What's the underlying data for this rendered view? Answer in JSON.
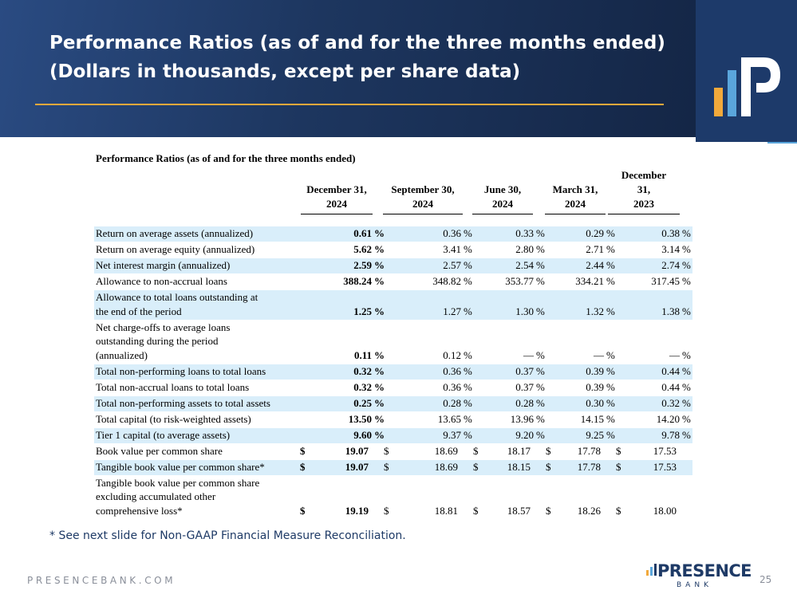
{
  "header": {
    "title_line1": "Performance Ratios (as of and for the three months ended)",
    "title_line2": "(Dollars in thousands, except per share data)"
  },
  "table": {
    "title": "Performance Ratios (as of and for the three months ended)",
    "columns": [
      {
        "line1": "December 31,",
        "line2": "2024"
      },
      {
        "line1": "September 30,",
        "line2": "2024"
      },
      {
        "line1": "June 30,",
        "line2": "2024"
      },
      {
        "line1": "March 31,",
        "line2": "2024"
      },
      {
        "line0": "December",
        "line1": "31,",
        "line2": "2023"
      }
    ],
    "rows": [
      {
        "label": "Return on average assets (annualized)",
        "values": [
          "0.61",
          "0.36",
          "0.33",
          "0.29",
          "0.38"
        ]
      },
      {
        "label": "Return on average equity (annualized)",
        "values": [
          "5.62",
          "3.41",
          "2.80",
          "2.71",
          "3.14"
        ]
      },
      {
        "label": "Net interest margin (annualized)",
        "values": [
          "2.59",
          "2.57",
          "2.54",
          "2.44",
          "2.74"
        ]
      },
      {
        "label": "Allowance to non-accrual loans",
        "values": [
          "388.24",
          "348.82",
          "353.77",
          "334.21",
          "317.45"
        ]
      },
      {
        "label_lines": [
          "Allowance to total loans outstanding at",
          "the end of the period"
        ],
        "values": [
          "1.25",
          "1.27",
          "1.30",
          "1.32",
          "1.38"
        ]
      },
      {
        "label_lines": [
          "Net charge-offs to average loans",
          "outstanding during the period",
          "(annualized)"
        ],
        "values": [
          "0.11",
          "0.12",
          "—",
          "—",
          "—"
        ]
      },
      {
        "label": "Total non-performing loans to total loans",
        "values": [
          "0.32",
          "0.36",
          "0.37",
          "0.39",
          "0.44"
        ]
      },
      {
        "label": "Total non-accrual loans to total loans",
        "values": [
          "0.32",
          "0.36",
          "0.37",
          "0.39",
          "0.44"
        ]
      },
      {
        "label": "Total non-performing assets to total assets",
        "values": [
          "0.25",
          "0.28",
          "0.28",
          "0.30",
          "0.32"
        ]
      },
      {
        "label": "Total capital (to risk-weighted assets)",
        "values": [
          "13.50",
          "13.65",
          "13.96",
          "14.15",
          "14.20"
        ]
      },
      {
        "label": "Tier 1 capital (to average assets)",
        "values": [
          "9.60",
          "9.37",
          "9.20",
          "9.25",
          "9.78"
        ]
      },
      {
        "label": "Book value per common share",
        "values": [
          "19.07",
          "18.69",
          "18.17",
          "17.78",
          "17.53"
        ]
      },
      {
        "label": "Tangible book value per common share*",
        "values": [
          "19.07",
          "18.69",
          "18.15",
          "17.78",
          "17.53"
        ]
      },
      {
        "label_lines": [
          "Tangible book value per common share",
          "excluding accumulated other",
          "comprehensive loss*"
        ],
        "values": [
          "19.19",
          "18.81",
          "18.57",
          "18.26",
          "18.00"
        ]
      }
    ],
    "percent_sign": "%",
    "dollar_sign": "$"
  },
  "footnote": "* See next slide for Non-GAAP Financial Measure Reconciliation.",
  "footer": {
    "website": "PRESENCEBANK.COM",
    "brand_name": "PRESENCE",
    "brand_sub": "BANK",
    "page_number": "25"
  },
  "colors": {
    "header_bg": "#1d365f",
    "accent_orange": "#f2a93b",
    "row_shade": "#d9eefa",
    "brand_navy": "#1e3a66"
  }
}
